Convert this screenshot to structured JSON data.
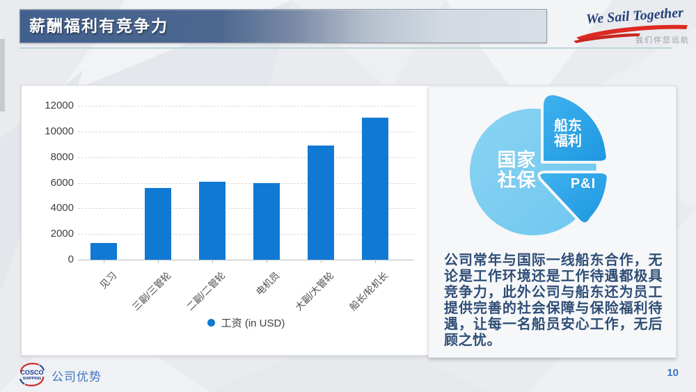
{
  "header": {
    "title": "薪酬福利有竞争力",
    "brand_slogan_en": "We Sail Together",
    "brand_slogan_cn": "我们伴您远航"
  },
  "chart_data": {
    "type": "bar",
    "title": "",
    "categories": [
      "见习",
      "三副/三管轮",
      "二副/二管轮",
      "电机员",
      "大副/大管轮",
      "船长/轮机长"
    ],
    "values": [
      1300,
      5600,
      6100,
      6000,
      8900,
      11100
    ],
    "series_name": "工资（in USD）",
    "legend_label": "工资 (in USD)",
    "xlabel": "",
    "ylabel": "",
    "ylim": [
      0,
      12000
    ],
    "y_ticks": [
      0,
      2000,
      4000,
      6000,
      8000,
      10000,
      12000
    ],
    "grid": "horizontal-dashed",
    "legend_position": "bottom",
    "bar_color": "#0F79D3"
  },
  "benefits_diagram": {
    "main_circle_label": "国家\n社保",
    "top_wedge_label": "船东\n福利",
    "bottom_wedge_label": "P&I",
    "circle_color": "#7DCDF1",
    "wedge_color": "#2AA5E8"
  },
  "description_text": "公司常年与国际一线船东合作，无论是工作环境还是工作待遇都极具竞争力，此外公司与船东还为员工提供完善的社会保障与保险福利待遇，让每一名船员安心工作，无后顾之忧。",
  "footer": {
    "logo_line1": "COSCO",
    "logo_line2": "SHIPPING",
    "section_label": "公司优势",
    "page_number": "10"
  }
}
